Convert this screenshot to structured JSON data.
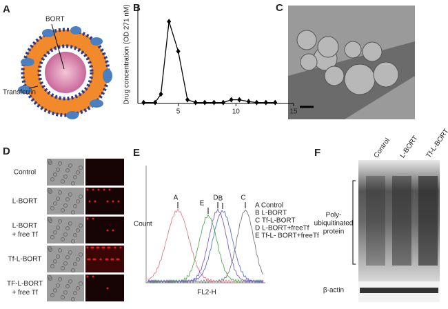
{
  "panels": {
    "a": {
      "label": "A",
      "bort": "BORT",
      "transferrin": "Transferrin"
    },
    "b": {
      "label": "B"
    },
    "c": {
      "label": "C"
    },
    "d": {
      "label": "D",
      "rows": [
        [
          "Control"
        ],
        [
          "L-BORT"
        ],
        [
          "L-BORT",
          "+ free Tf"
        ],
        [
          "Tf-L-BORT"
        ],
        [
          "TF-L-BORT",
          "+ free Tf"
        ]
      ]
    },
    "e": {
      "label": "E",
      "y_label": "Count",
      "x_label": "FL2-H",
      "legend": [
        "A Control",
        "B L-BORT",
        "C Tf-L-BORT",
        "D L-BORT+freeTf",
        "E Tf-L- BORT+freeTf"
      ],
      "peaks": [
        "A",
        "E",
        "D",
        "B",
        "C"
      ]
    },
    "f": {
      "label": "F",
      "lanes": [
        "Control",
        "L-BORT",
        "Tf-L-BORT"
      ],
      "band_label": [
        "Poly-",
        "ubiquitinated",
        "protein"
      ],
      "loading": "β-actin"
    }
  },
  "chart_data": {
    "type": "line",
    "y_label": "Drug concentration (OD 271 nM)",
    "x": [
      2,
      3,
      3.5,
      4.2,
      5,
      5.8,
      6.5,
      7.3,
      8.1,
      8.9,
      9.6,
      10.3,
      11.1,
      11.8,
      12.6,
      13.4
    ],
    "values": [
      0.005,
      0.005,
      0.05,
      0.44,
      0.28,
      0.02,
      0.005,
      0.005,
      0.005,
      0.005,
      0.02,
      0.02,
      0.01,
      0.005,
      0.005,
      0.005
    ],
    "color": "#000000",
    "xlim": [
      1.5,
      15
    ],
    "xticks": [
      5,
      10,
      15
    ],
    "ylim": [
      0,
      0.5
    ]
  }
}
